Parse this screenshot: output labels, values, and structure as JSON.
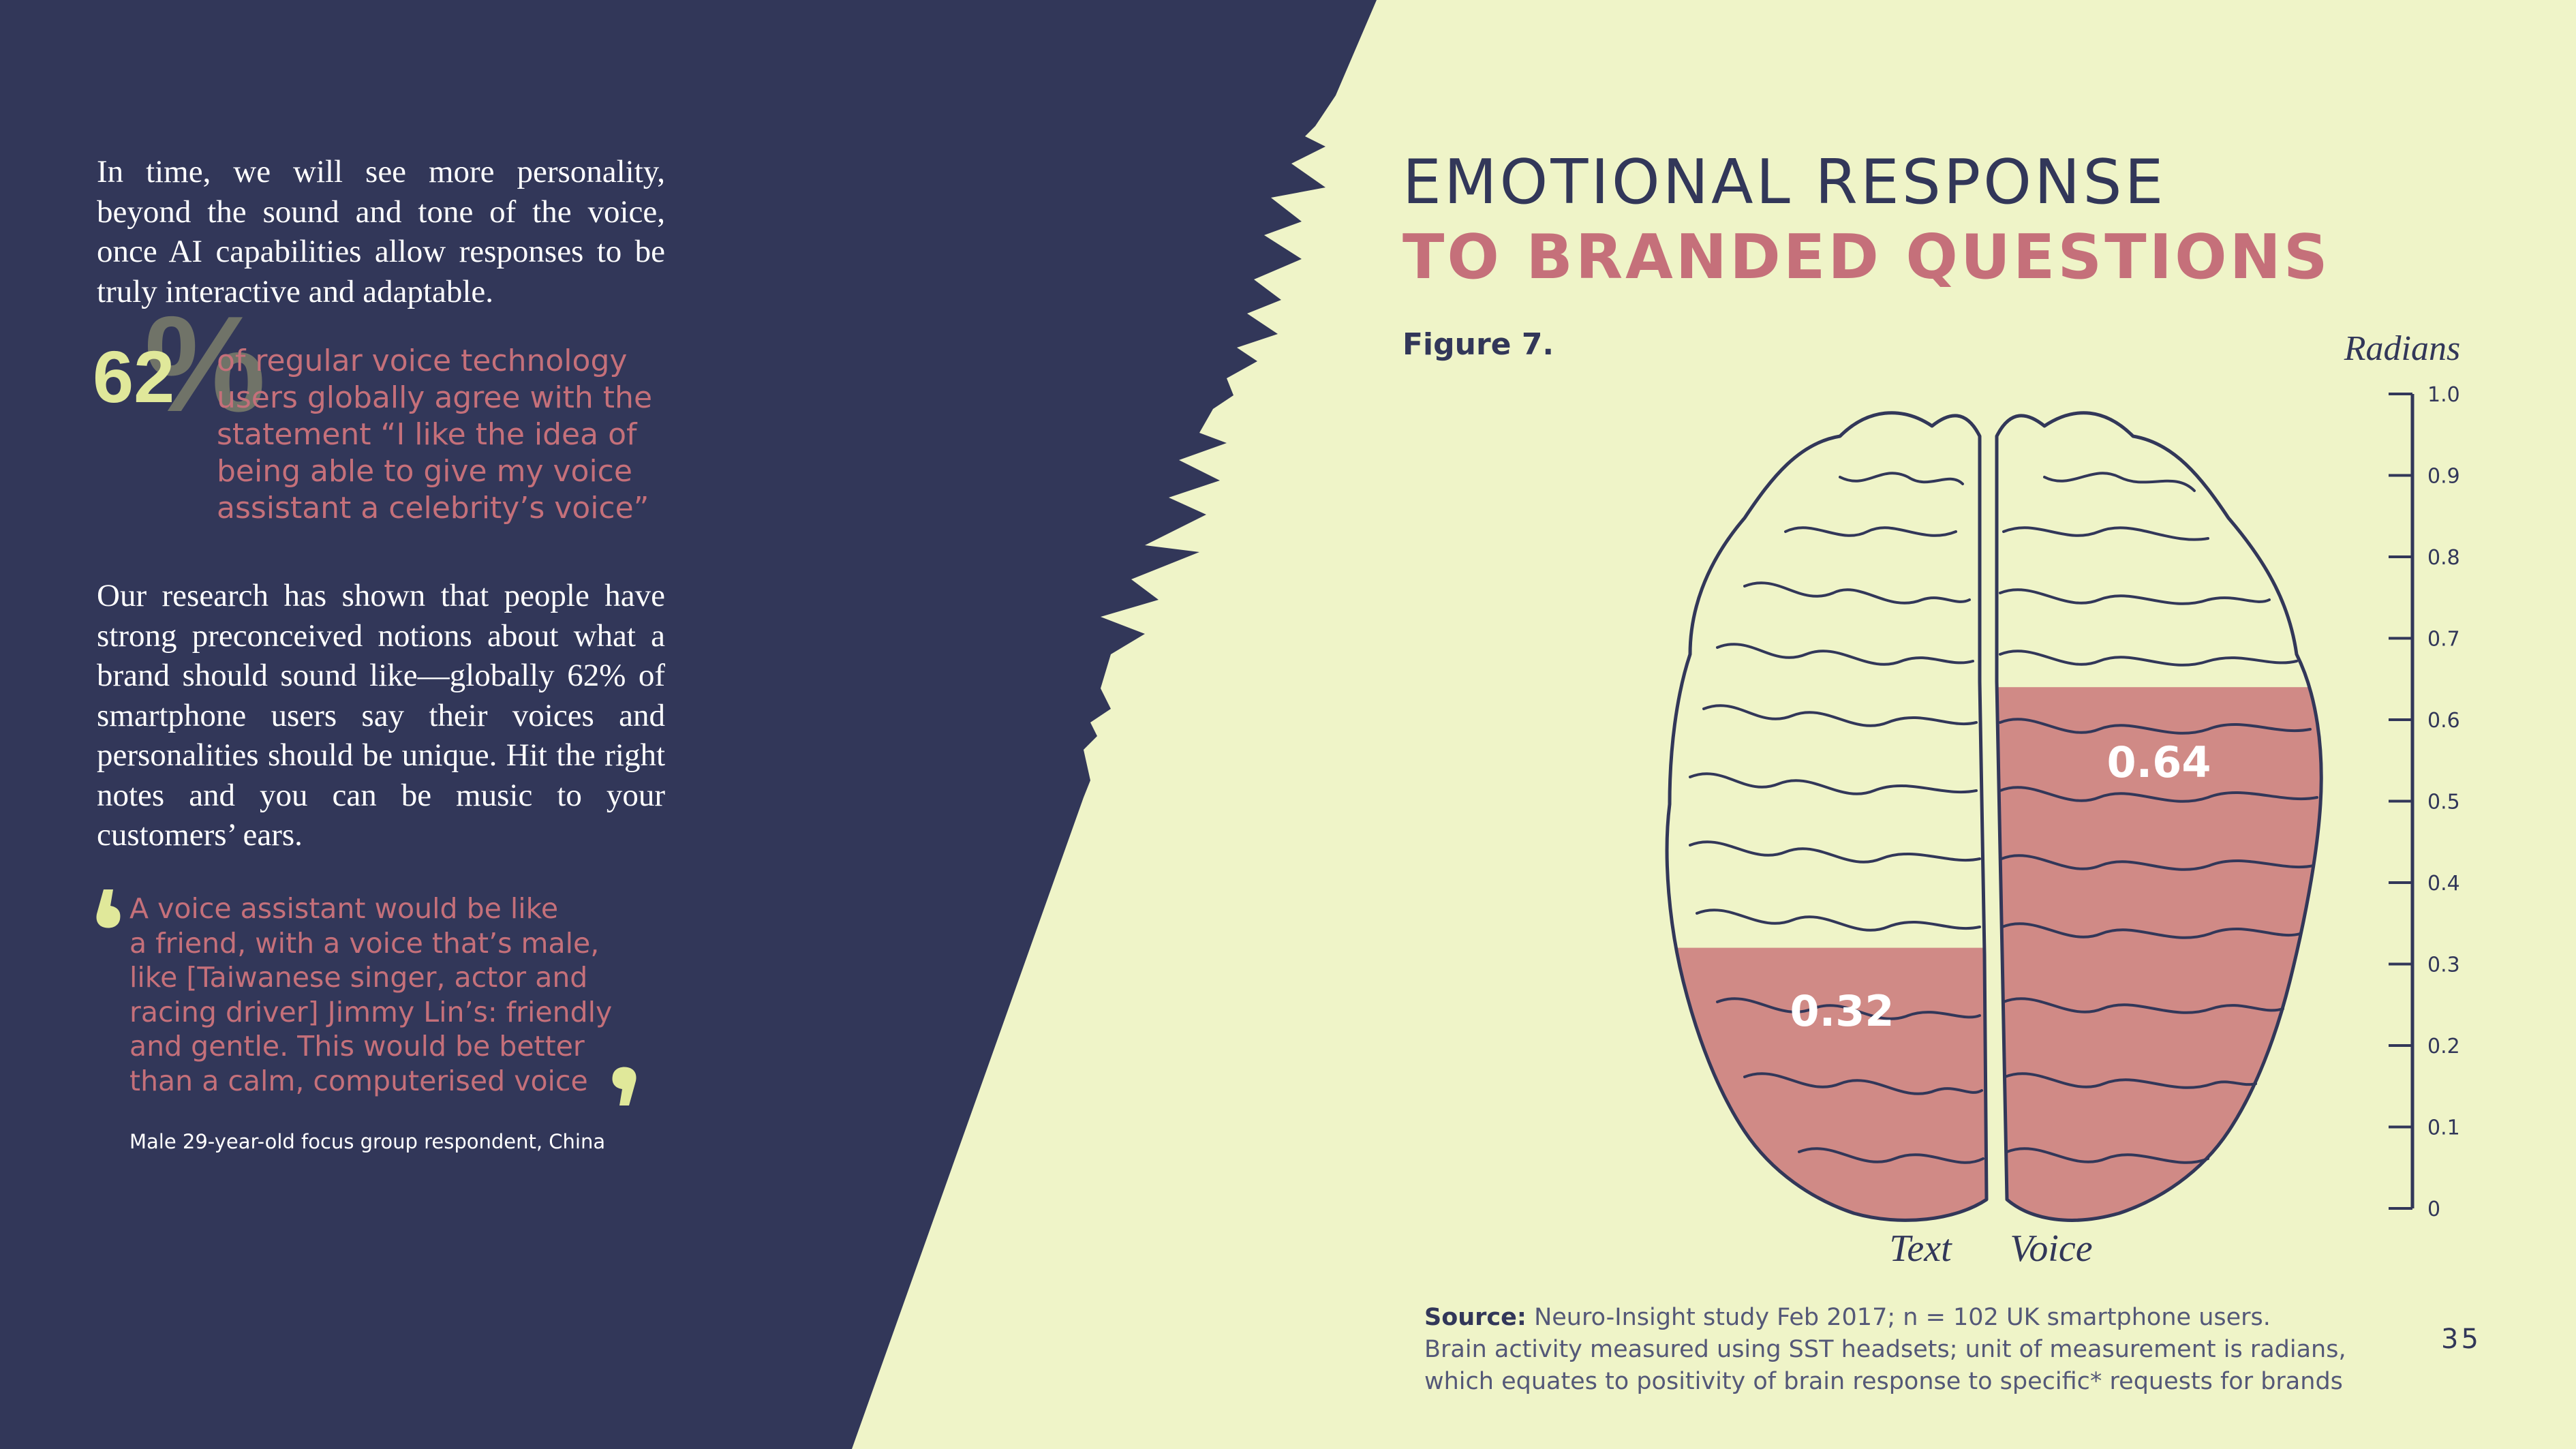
{
  "colors": {
    "navy": "#323759",
    "cream": "#eff4c8",
    "pink": "#c5707a",
    "brain_fill": "#d08a86",
    "lime": "#e0e89a"
  },
  "left": {
    "intro": "In time, we will see more personality, beyond the sound and tone of the voice, once AI capabilities allow responses to be truly interactive and adaptable.",
    "stat": {
      "value": "62",
      "symbol": "%",
      "lines": [
        "of regular voice technology",
        "users globally agree with the",
        "statement “I like the idea of",
        "being able to give my voice",
        "assistant a celebrity’s voice”"
      ]
    },
    "research": "Our research has shown that people have strong preconceived notions about what a brand should sound like—globally 62% of smartphone users say their voices and personalities should be unique. Hit the right notes and you can be music to your customers’ ears.",
    "quote": {
      "lines": [
        "A voice assistant would be like",
        "a friend, with a voice that’s male,",
        "like [Taiwanese singer, actor and",
        "racing driver] Jimmy Lin’s: friendly",
        "and gentle. This would be better",
        "than a calm, computerised voice"
      ],
      "open_icon": "open-quote-icon",
      "close_icon": "close-quote-icon"
    },
    "attribution": "Male 29-year-old focus group respondent, China"
  },
  "right": {
    "title_line1": "EMOTIONAL RESPONSE",
    "title_line2": "TO BRANDED QUESTIONS",
    "figure_label": "Figure 7.",
    "source_label": "Source:",
    "source_line1": "Neuro-Insight study Feb 2017; n = 102 UK smartphone users.",
    "source_line2": "Brain activity measured using SST headsets; unit of measurement is radians,",
    "source_line3": "which equates to positivity of brain response to specific* requests for brands",
    "page_number": "35"
  },
  "chart_data": {
    "type": "bar",
    "categories": [
      "Text",
      "Voice"
    ],
    "values": [
      0.32,
      0.64
    ],
    "value_labels": [
      "0.32",
      "0.64"
    ],
    "ylabel": "Radians",
    "ylim": [
      0,
      1.0
    ],
    "yticks": [
      "0",
      "0.1",
      "0.2",
      "0.3",
      "0.4",
      "0.5",
      "0.6",
      "0.7",
      "0.8",
      "0.9",
      "1.0"
    ],
    "style": "brain-hemisphere fill"
  }
}
